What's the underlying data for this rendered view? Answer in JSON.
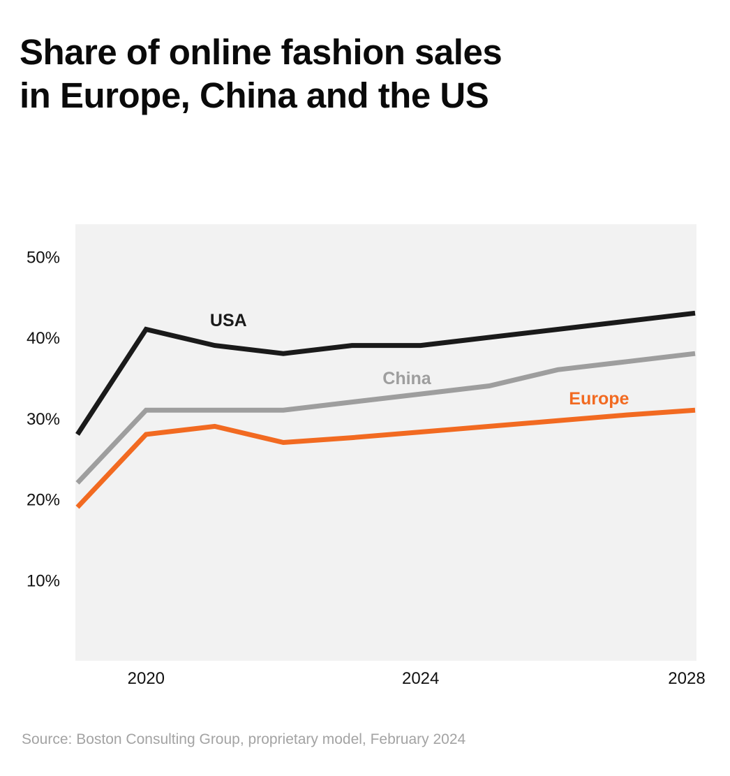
{
  "chart_data": {
    "type": "line",
    "title": "Share of online fashion sales in Europe, China and the US",
    "xlabel": "",
    "ylabel": "",
    "x": [
      2019,
      2020,
      2021,
      2022,
      2023,
      2024,
      2025,
      2026,
      2027,
      2028
    ],
    "xlim": [
      2019,
      2028
    ],
    "ylim": [
      0,
      54
    ],
    "x_ticks": [
      2020,
      2024,
      2028
    ],
    "x_tick_labels": [
      "2020",
      "2024",
      "2028"
    ],
    "y_ticks": [
      10,
      20,
      30,
      40,
      50
    ],
    "y_tick_labels": [
      "10%",
      "20%",
      "30%",
      "40%",
      "50%"
    ],
    "grid": false,
    "legend": "inline",
    "series": [
      {
        "name": "USA",
        "color": "#1a1a1a",
        "values": [
          28,
          41,
          39,
          38,
          39,
          39,
          40,
          41,
          42,
          43
        ]
      },
      {
        "name": "China",
        "color": "#9e9e9e",
        "values": [
          22,
          31,
          31,
          31,
          32,
          33,
          34,
          36,
          37,
          38
        ]
      },
      {
        "name": "Europe",
        "color": "#f26a21",
        "values": [
          19,
          28,
          29,
          27,
          27.6,
          28.3,
          29,
          29.7,
          30.4,
          31
        ]
      }
    ]
  },
  "source": "Source: Boston Consulting Group, proprietary model, February 2024"
}
